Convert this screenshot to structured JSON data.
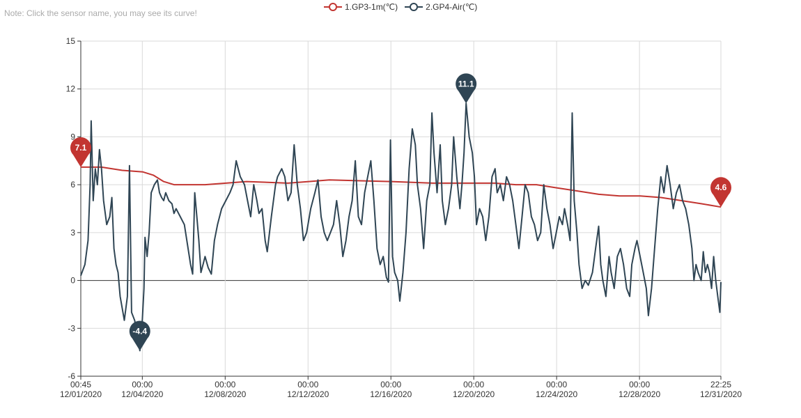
{
  "note": "Note: Click the sensor name, you may see its curve!",
  "colors": {
    "series1": "#c23531",
    "series2": "#2f4554",
    "grid": "#d9d9d9",
    "axis": "#333333"
  },
  "chart_data": {
    "type": "line",
    "title": "",
    "xlabel": "",
    "ylabel": "",
    "ylim": [
      -6,
      15
    ],
    "yticks": [
      -6,
      -3,
      0,
      3,
      6,
      9,
      12,
      15
    ],
    "xticks": [
      {
        "time": "00:45",
        "date": "12/01/2020",
        "day": 0.0
      },
      {
        "time": "00:00",
        "date": "12/04/2020",
        "day": 2.97
      },
      {
        "time": "00:00",
        "date": "12/08/2020",
        "day": 6.97
      },
      {
        "time": "00:00",
        "date": "12/12/2020",
        "day": 10.97
      },
      {
        "time": "00:00",
        "date": "12/16/2020",
        "day": 14.97
      },
      {
        "time": "00:00",
        "date": "12/20/2020",
        "day": 18.97
      },
      {
        "time": "00:00",
        "date": "12/24/2020",
        "day": 22.97
      },
      {
        "time": "00:00",
        "date": "12/28/2020",
        "day": 26.97
      },
      {
        "time": "22:25",
        "date": "12/31/2020",
        "day": 30.9
      }
    ],
    "xlim_days": [
      0,
      30.9
    ],
    "grid": true,
    "legend_position": "top-center",
    "series": [
      {
        "name": "1.GP3-1m(℃)",
        "color": "#c23531",
        "points": [
          [
            0,
            7.1
          ],
          [
            1.0,
            7.1
          ],
          [
            2.0,
            6.9
          ],
          [
            3.0,
            6.8
          ],
          [
            3.5,
            6.6
          ],
          [
            4.0,
            6.2
          ],
          [
            4.5,
            6.0
          ],
          [
            6.0,
            6.0
          ],
          [
            7.0,
            6.1
          ],
          [
            8.0,
            6.2
          ],
          [
            10.0,
            6.1
          ],
          [
            11.0,
            6.2
          ],
          [
            12.0,
            6.3
          ],
          [
            15.0,
            6.2
          ],
          [
            17.0,
            6.1
          ],
          [
            20.0,
            6.1
          ],
          [
            21.0,
            6.0
          ],
          [
            22.0,
            6.0
          ],
          [
            23.0,
            5.8
          ],
          [
            24.0,
            5.6
          ],
          [
            25.0,
            5.4
          ],
          [
            26.0,
            5.3
          ],
          [
            27.0,
            5.3
          ],
          [
            28.0,
            5.2
          ],
          [
            29.0,
            5.0
          ],
          [
            30.0,
            4.8
          ],
          [
            30.9,
            4.6
          ]
        ],
        "markers": [
          {
            "label": "7.1",
            "day": 0.0,
            "value": 7.1
          },
          {
            "label": "4.6",
            "day": 30.9,
            "value": 4.6
          }
        ]
      },
      {
        "name": "2.GP4-Air(℃)",
        "color": "#2f4554",
        "points": [
          [
            0,
            0.3
          ],
          [
            0.2,
            1.0
          ],
          [
            0.35,
            2.5
          ],
          [
            0.45,
            6.0
          ],
          [
            0.5,
            10.0
          ],
          [
            0.6,
            5.0
          ],
          [
            0.7,
            7.0
          ],
          [
            0.8,
            6.0
          ],
          [
            0.9,
            8.2
          ],
          [
            1.0,
            7.0
          ],
          [
            1.1,
            5.0
          ],
          [
            1.25,
            3.5
          ],
          [
            1.4,
            4.0
          ],
          [
            1.5,
            5.2
          ],
          [
            1.6,
            2.0
          ],
          [
            1.7,
            1.0
          ],
          [
            1.8,
            0.5
          ],
          [
            1.9,
            -1.0
          ],
          [
            2.1,
            -2.5
          ],
          [
            2.25,
            -1.0
          ],
          [
            2.35,
            7.2
          ],
          [
            2.45,
            -2.0
          ],
          [
            2.6,
            -2.5
          ],
          [
            2.75,
            -3.5
          ],
          [
            2.85,
            -4.4
          ],
          [
            2.95,
            -3.0
          ],
          [
            3.05,
            -0.5
          ],
          [
            3.1,
            2.7
          ],
          [
            3.2,
            1.5
          ],
          [
            3.3,
            3.0
          ],
          [
            3.4,
            5.5
          ],
          [
            3.55,
            6.0
          ],
          [
            3.7,
            6.3
          ],
          [
            3.8,
            5.5
          ],
          [
            3.9,
            5.2
          ],
          [
            4.0,
            5.0
          ],
          [
            4.1,
            5.5
          ],
          [
            4.25,
            5.0
          ],
          [
            4.4,
            4.8
          ],
          [
            4.5,
            4.2
          ],
          [
            4.6,
            4.5
          ],
          [
            4.8,
            4.0
          ],
          [
            5.0,
            3.5
          ],
          [
            5.3,
            1.0
          ],
          [
            5.4,
            0.4
          ],
          [
            5.5,
            5.5
          ],
          [
            5.6,
            4.0
          ],
          [
            5.7,
            2.5
          ],
          [
            5.8,
            0.5
          ],
          [
            5.9,
            1.0
          ],
          [
            6.0,
            1.5
          ],
          [
            6.15,
            0.8
          ],
          [
            6.3,
            0.4
          ],
          [
            6.45,
            2.5
          ],
          [
            6.6,
            3.5
          ],
          [
            6.8,
            4.5
          ],
          [
            7.0,
            5.0
          ],
          [
            7.2,
            5.5
          ],
          [
            7.35,
            6.0
          ],
          [
            7.5,
            7.5
          ],
          [
            7.6,
            7.0
          ],
          [
            7.7,
            6.5
          ],
          [
            7.9,
            6.0
          ],
          [
            8.05,
            5.0
          ],
          [
            8.2,
            4.0
          ],
          [
            8.35,
            6.0
          ],
          [
            8.5,
            5.0
          ],
          [
            8.6,
            4.2
          ],
          [
            8.75,
            4.5
          ],
          [
            8.9,
            2.5
          ],
          [
            9.0,
            1.8
          ],
          [
            9.2,
            4.0
          ],
          [
            9.4,
            6.0
          ],
          [
            9.5,
            6.5
          ],
          [
            9.7,
            7.0
          ],
          [
            9.85,
            6.5
          ],
          [
            10.0,
            5.0
          ],
          [
            10.15,
            5.5
          ],
          [
            10.3,
            8.5
          ],
          [
            10.45,
            6.0
          ],
          [
            10.6,
            4.5
          ],
          [
            10.75,
            2.5
          ],
          [
            10.9,
            3.0
          ],
          [
            11.1,
            4.5
          ],
          [
            11.3,
            5.5
          ],
          [
            11.45,
            6.3
          ],
          [
            11.6,
            4.0
          ],
          [
            11.75,
            3.0
          ],
          [
            11.9,
            2.5
          ],
          [
            12.05,
            3.0
          ],
          [
            12.2,
            3.5
          ],
          [
            12.35,
            5.0
          ],
          [
            12.5,
            3.5
          ],
          [
            12.65,
            1.5
          ],
          [
            12.8,
            2.5
          ],
          [
            12.95,
            4.0
          ],
          [
            13.1,
            5.0
          ],
          [
            13.25,
            7.5
          ],
          [
            13.4,
            4.0
          ],
          [
            13.55,
            3.5
          ],
          [
            13.7,
            5.5
          ],
          [
            13.85,
            6.5
          ],
          [
            14.0,
            7.5
          ],
          [
            14.15,
            5.0
          ],
          [
            14.3,
            2.0
          ],
          [
            14.45,
            1.0
          ],
          [
            14.6,
            1.5
          ],
          [
            14.75,
            0.2
          ],
          [
            14.85,
            -0.1
          ],
          [
            14.95,
            8.8
          ],
          [
            15.05,
            1.5
          ],
          [
            15.15,
            0.5
          ],
          [
            15.3,
            0.0
          ],
          [
            15.4,
            -1.3
          ],
          [
            15.55,
            0.5
          ],
          [
            15.7,
            3.0
          ],
          [
            15.85,
            7.0
          ],
          [
            16.0,
            9.5
          ],
          [
            16.15,
            8.5
          ],
          [
            16.25,
            6.0
          ],
          [
            16.4,
            4.5
          ],
          [
            16.55,
            2.0
          ],
          [
            16.7,
            5.0
          ],
          [
            16.85,
            6.0
          ],
          [
            16.95,
            10.5
          ],
          [
            17.05,
            8.0
          ],
          [
            17.2,
            5.5
          ],
          [
            17.35,
            8.5
          ],
          [
            17.45,
            5.0
          ],
          [
            17.6,
            3.5
          ],
          [
            17.75,
            4.5
          ],
          [
            17.9,
            6.0
          ],
          [
            18.0,
            9.0
          ],
          [
            18.15,
            6.5
          ],
          [
            18.3,
            4.5
          ],
          [
            18.4,
            6.0
          ],
          [
            18.5,
            8.0
          ],
          [
            18.6,
            11.1
          ],
          [
            18.75,
            9.0
          ],
          [
            18.9,
            8.0
          ],
          [
            19.0,
            6.5
          ],
          [
            19.1,
            3.5
          ],
          [
            19.25,
            4.5
          ],
          [
            19.4,
            4.0
          ],
          [
            19.55,
            2.5
          ],
          [
            19.7,
            4.0
          ],
          [
            19.85,
            6.5
          ],
          [
            20.0,
            7.0
          ],
          [
            20.1,
            5.5
          ],
          [
            20.25,
            6.0
          ],
          [
            20.4,
            5.0
          ],
          [
            20.55,
            6.5
          ],
          [
            20.7,
            6.0
          ],
          [
            20.85,
            5.0
          ],
          [
            21.0,
            3.5
          ],
          [
            21.15,
            2.0
          ],
          [
            21.3,
            4.0
          ],
          [
            21.45,
            6.0
          ],
          [
            21.6,
            5.5
          ],
          [
            21.75,
            4.0
          ],
          [
            21.9,
            3.5
          ],
          [
            22.05,
            2.5
          ],
          [
            22.2,
            3.0
          ],
          [
            22.35,
            6.0
          ],
          [
            22.5,
            4.5
          ],
          [
            22.65,
            3.5
          ],
          [
            22.8,
            2.0
          ],
          [
            22.95,
            3.0
          ],
          [
            23.1,
            4.0
          ],
          [
            23.25,
            3.5
          ],
          [
            23.35,
            4.5
          ],
          [
            23.5,
            3.5
          ],
          [
            23.62,
            2.5
          ],
          [
            23.72,
            10.5
          ],
          [
            23.82,
            5.0
          ],
          [
            23.95,
            3.0
          ],
          [
            24.05,
            1.0
          ],
          [
            24.2,
            -0.5
          ],
          [
            24.35,
            0.0
          ],
          [
            24.5,
            -0.3
          ],
          [
            24.7,
            0.5
          ],
          [
            24.85,
            2.0
          ],
          [
            25.0,
            3.4
          ],
          [
            25.1,
            1.0
          ],
          [
            25.2,
            0.0
          ],
          [
            25.35,
            -1.0
          ],
          [
            25.5,
            1.5
          ],
          [
            25.6,
            0.5
          ],
          [
            25.75,
            -0.5
          ],
          [
            25.9,
            1.5
          ],
          [
            26.05,
            2.0
          ],
          [
            26.2,
            1.0
          ],
          [
            26.35,
            -0.5
          ],
          [
            26.5,
            -1.0
          ],
          [
            26.6,
            1.0
          ],
          [
            26.75,
            2.0
          ],
          [
            26.85,
            2.5
          ],
          [
            27.0,
            1.5
          ],
          [
            27.15,
            0.5
          ],
          [
            27.3,
            -0.5
          ],
          [
            27.4,
            -2.2
          ],
          [
            27.55,
            -0.5
          ],
          [
            27.7,
            2.0
          ],
          [
            27.85,
            4.5
          ],
          [
            28.0,
            6.5
          ],
          [
            28.15,
            5.5
          ],
          [
            28.3,
            7.2
          ],
          [
            28.45,
            6.0
          ],
          [
            28.6,
            4.5
          ],
          [
            28.75,
            5.5
          ],
          [
            28.9,
            6.0
          ],
          [
            29.05,
            5.0
          ],
          [
            29.2,
            4.5
          ],
          [
            29.35,
            3.5
          ],
          [
            29.5,
            2.0
          ],
          [
            29.6,
            0.0
          ],
          [
            29.7,
            1.0
          ],
          [
            29.8,
            0.5
          ],
          [
            29.95,
            0.0
          ],
          [
            30.05,
            1.8
          ],
          [
            30.15,
            0.5
          ],
          [
            30.25,
            1.0
          ],
          [
            30.35,
            0.5
          ],
          [
            30.45,
            -0.5
          ],
          [
            30.55,
            1.5
          ],
          [
            30.65,
            0.0
          ],
          [
            30.75,
            -1.0
          ],
          [
            30.85,
            -2.0
          ],
          [
            30.9,
            -0.1
          ]
        ],
        "markers": [
          {
            "label": "11.1",
            "day": 18.6,
            "value": 11.1
          },
          {
            "label": "-4.4",
            "day": 2.85,
            "value": -4.4
          }
        ]
      }
    ]
  }
}
